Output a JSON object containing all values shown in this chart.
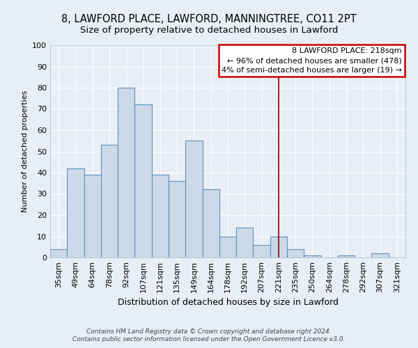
{
  "title": "8, LAWFORD PLACE, LAWFORD, MANNINGTREE, CO11 2PT",
  "subtitle": "Size of property relative to detached houses in Lawford",
  "xlabel": "Distribution of detached houses by size in Lawford",
  "ylabel": "Number of detached properties",
  "bar_labels": [
    "35sqm",
    "49sqm",
    "64sqm",
    "78sqm",
    "92sqm",
    "107sqm",
    "121sqm",
    "135sqm",
    "149sqm",
    "164sqm",
    "178sqm",
    "192sqm",
    "207sqm",
    "221sqm",
    "235sqm",
    "250sqm",
    "264sqm",
    "278sqm",
    "292sqm",
    "307sqm",
    "321sqm"
  ],
  "bar_values": [
    4,
    42,
    39,
    53,
    80,
    72,
    39,
    36,
    55,
    32,
    10,
    14,
    6,
    10,
    4,
    1,
    0,
    1,
    0,
    2,
    0
  ],
  "bar_color": "#ccd9e8",
  "bar_edge_color": "#6090b8",
  "vline_x_index": 13,
  "vline_color": "#880000",
  "annotation_title": "8 LAWFORD PLACE: 218sqm",
  "annotation_line1": "← 96% of detached houses are smaller (478)",
  "annotation_line2": "4% of semi-detached houses are larger (19) →",
  "annotation_box_facecolor": "#ffffff",
  "annotation_box_edgecolor": "#cc0000",
  "footer_line1": "Contains HM Land Registry data © Crown copyright and database right 2024.",
  "footer_line2": "Contains public sector information licensed under the Open Government Licence v3.0.",
  "ylim": [
    0,
    100
  ],
  "background_color": "#e8eef5",
  "plot_bg_color": "#e8eef5",
  "grid_color": "#ffffff",
  "title_fontsize": 10.5,
  "subtitle_fontsize": 9.5,
  "ylabel_fontsize": 8,
  "xlabel_fontsize": 9,
  "tick_fontsize": 8,
  "annotation_fontsize": 8,
  "footer_fontsize": 6.5
}
